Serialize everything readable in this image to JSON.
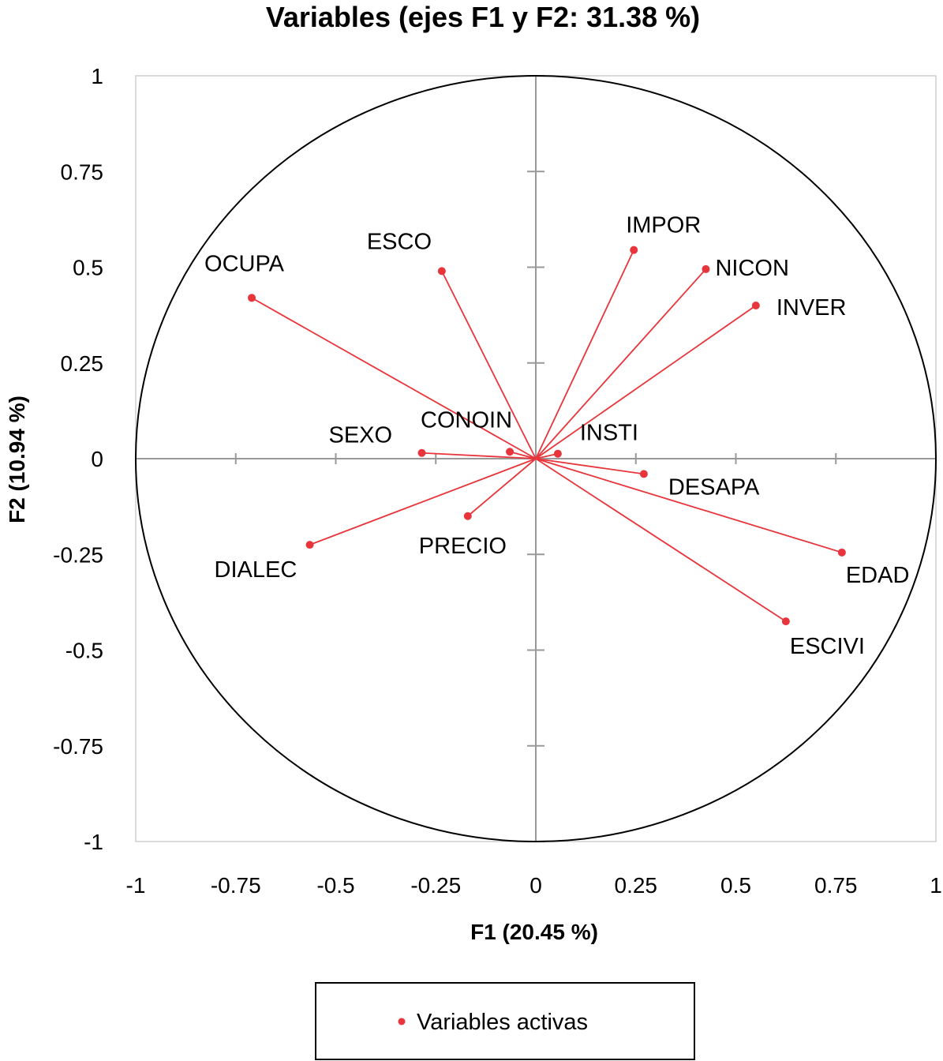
{
  "chart_data": {
    "type": "scatter",
    "subtype": "correlation-circle",
    "title": "Variables (ejes F1 y F2: 31.38 %)",
    "xlabel": "F1 (20.45 %)",
    "ylabel": "F2 (10.94 %)",
    "xlim": [
      -1,
      1
    ],
    "ylim": [
      -1,
      1
    ],
    "x_ticks": [
      "-1",
      "-0.75",
      "-0.5",
      "-0.25",
      "0",
      "0.25",
      "0.5",
      "0.75",
      "1"
    ],
    "y_ticks": [
      "1",
      "0.75",
      "0.5",
      "0.25",
      "0",
      "-0.25",
      "-0.5",
      "-0.75",
      "-1"
    ],
    "grid": false,
    "legend_position": "bottom",
    "colors": {
      "series": "#e8353b",
      "axes": "#999999",
      "circle": "#000000"
    },
    "series": [
      {
        "name": "Variables activas",
        "points": [
          {
            "label": "OCUPA",
            "x": -0.71,
            "y": 0.42
          },
          {
            "label": "ESCO",
            "x": -0.235,
            "y": 0.49
          },
          {
            "label": "IMPOR",
            "x": 0.245,
            "y": 0.545
          },
          {
            "label": "NICON",
            "x": 0.425,
            "y": 0.495
          },
          {
            "label": "INVER",
            "x": 0.55,
            "y": 0.4
          },
          {
            "label": "SEXO",
            "x": -0.285,
            "y": 0.015
          },
          {
            "label": "CONOIN",
            "x": -0.065,
            "y": 0.018
          },
          {
            "label": "INSTI",
            "x": 0.055,
            "y": 0.013
          },
          {
            "label": "DESAPA",
            "x": 0.27,
            "y": -0.04
          },
          {
            "label": "PRECIO",
            "x": -0.17,
            "y": -0.15
          },
          {
            "label": "DIALEC",
            "x": -0.565,
            "y": -0.225
          },
          {
            "label": "EDAD",
            "x": 0.765,
            "y": -0.245
          },
          {
            "label": "ESCIVI",
            "x": 0.625,
            "y": -0.425
          }
        ]
      }
    ]
  }
}
